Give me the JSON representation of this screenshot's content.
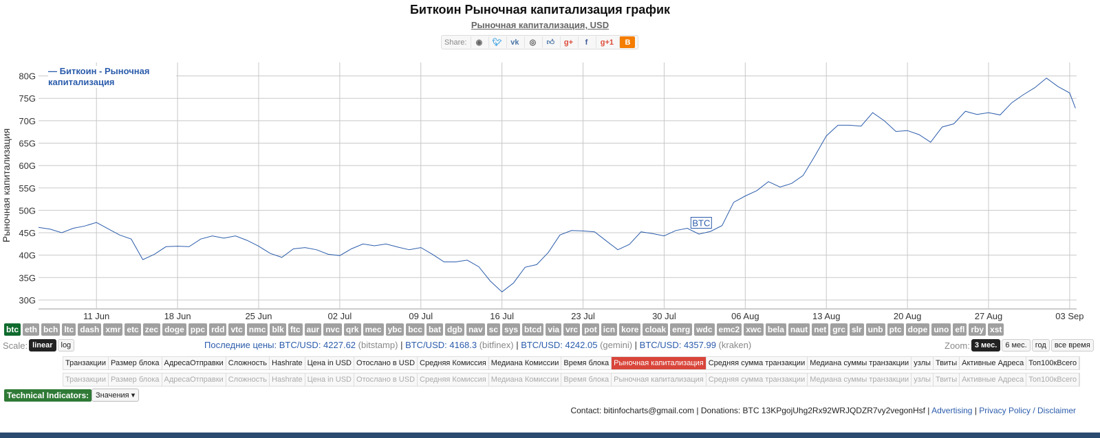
{
  "header": {
    "title": "Биткоин Рыночная капитализация график",
    "subtitle": "Рыночная капитализация, USD",
    "share_label": "Share:",
    "share_buttons": [
      "reddit-icon",
      "twitter-icon",
      "vk-icon",
      "weibo-icon",
      "like-icon",
      "google-icon",
      "facebook-icon",
      "google-plus-one-icon",
      "blogger-icon"
    ]
  },
  "chart_data": {
    "type": "line",
    "ylabel": "Рыночная капитализация",
    "legend": "— Биткоин - Рыночная капитализация",
    "legend_position": "top-left",
    "y_ticks": [
      "30G",
      "35G",
      "40G",
      "45G",
      "50G",
      "55G",
      "60G",
      "65G",
      "70G",
      "75G",
      "80G"
    ],
    "ylim": [
      28,
      83
    ],
    "x_ticks": [
      "11 Jun",
      "18 Jun",
      "25 Jun",
      "02 Jul",
      "09 Jul",
      "16 Jul",
      "23 Jul",
      "30 Jul",
      "06 Aug",
      "13 Aug",
      "20 Aug",
      "27 Aug",
      "03 Sep"
    ],
    "x_start_day": 6,
    "x_end_day": 95,
    "grid": true,
    "annotation": {
      "text": "BTC",
      "x": 63.2,
      "y": 46
    },
    "series": [
      {
        "name": "Биткоин - Рыночная капитализация",
        "color": "#2b5cab",
        "points": [
          [
            6,
            46.2
          ],
          [
            7,
            45.8
          ],
          [
            8,
            45
          ],
          [
            9,
            46
          ],
          [
            10,
            46.5
          ],
          [
            11,
            47.3
          ],
          [
            12,
            45.9
          ],
          [
            13,
            44.5
          ],
          [
            14,
            43.6
          ],
          [
            15,
            39
          ],
          [
            16,
            40.2
          ],
          [
            17,
            41.9
          ],
          [
            18,
            42
          ],
          [
            19,
            41.9
          ],
          [
            20,
            43.6
          ],
          [
            21,
            44.3
          ],
          [
            22,
            43.8
          ],
          [
            23,
            44.3
          ],
          [
            24,
            43.3
          ],
          [
            25,
            42
          ],
          [
            26,
            40.4
          ],
          [
            27,
            39.5
          ],
          [
            28,
            41.4
          ],
          [
            29,
            41.7
          ],
          [
            30,
            41.2
          ],
          [
            31,
            40.2
          ],
          [
            32,
            39.9
          ],
          [
            33,
            41.4
          ],
          [
            34,
            42.5
          ],
          [
            35,
            42.1
          ],
          [
            36,
            42.5
          ],
          [
            37,
            41.8
          ],
          [
            38,
            41.2
          ],
          [
            39,
            41.7
          ],
          [
            40,
            40.2
          ],
          [
            41,
            38.5
          ],
          [
            42,
            38.5
          ],
          [
            43,
            38.9
          ],
          [
            44,
            37.4
          ],
          [
            45,
            34.2
          ],
          [
            46,
            31.8
          ],
          [
            47,
            33.8
          ],
          [
            48,
            37.3
          ],
          [
            49,
            37.9
          ],
          [
            50,
            40.6
          ],
          [
            51,
            44.5
          ],
          [
            52,
            45.5
          ],
          [
            53,
            45.4
          ],
          [
            54,
            45.2
          ],
          [
            55,
            43.2
          ],
          [
            56,
            41.2
          ],
          [
            57,
            42.4
          ],
          [
            58,
            45.2
          ],
          [
            59,
            44.8
          ],
          [
            60,
            44.3
          ],
          [
            61,
            45.5
          ],
          [
            62,
            46
          ],
          [
            63,
            44.7
          ],
          [
            64,
            45.3
          ],
          [
            65,
            46.6
          ],
          [
            66,
            51.8
          ],
          [
            67,
            53.2
          ],
          [
            68,
            54.4
          ],
          [
            69,
            56.4
          ],
          [
            70,
            55.2
          ],
          [
            71,
            56
          ],
          [
            72,
            57.8
          ],
          [
            73,
            62.1
          ],
          [
            74,
            66.6
          ],
          [
            75,
            69
          ],
          [
            76,
            69
          ],
          [
            77,
            68.8
          ],
          [
            78,
            71.8
          ],
          [
            79,
            70
          ],
          [
            80,
            67.6
          ],
          [
            81,
            67.8
          ],
          [
            82,
            66.9
          ],
          [
            83,
            65.2
          ],
          [
            84,
            68.6
          ],
          [
            85,
            69.3
          ],
          [
            86,
            72.1
          ],
          [
            87,
            71.4
          ],
          [
            88,
            71.8
          ],
          [
            89,
            71.3
          ],
          [
            90,
            74
          ],
          [
            91,
            75.8
          ],
          [
            92,
            77.4
          ],
          [
            93,
            79.5
          ],
          [
            94,
            77.6
          ],
          [
            95,
            76.2
          ],
          [
            95.5,
            72.8
          ]
        ]
      }
    ]
  },
  "coins": [
    "btc",
    "eth",
    "bch",
    "ltc",
    "dash",
    "xmr",
    "etc",
    "zec",
    "doge",
    "ppc",
    "rdd",
    "vtc",
    "nmc",
    "blk",
    "ftc",
    "aur",
    "nvc",
    "qrk",
    "mec",
    "ybc",
    "bcc",
    "bat",
    "dgb",
    "nav",
    "sc",
    "sys",
    "btcd",
    "via",
    "vrc",
    "pot",
    "icn",
    "kore",
    "cloak",
    "enrg",
    "wdc",
    "emc2",
    "xwc",
    "bela",
    "naut",
    "net",
    "grc",
    "slr",
    "unb",
    "ptc",
    "dope",
    "uno",
    "efl",
    "rby",
    "xst"
  ],
  "scale": {
    "label": "Scale:",
    "linear": "linear",
    "log": "log"
  },
  "prices": {
    "label": "Последние цены:",
    "items": [
      {
        "pair": "BTC/USD:",
        "value": "4227.62",
        "exchange": "(bitstamp)"
      },
      {
        "pair": "BTC/USD:",
        "value": "4168.3",
        "exchange": "(bitfinex)"
      },
      {
        "pair": "BTC/USD:",
        "value": "4242.05",
        "exchange": "(gemini)"
      },
      {
        "pair": "BTC/USD:",
        "value": "4357.99",
        "exchange": "(kraken)"
      }
    ]
  },
  "zoom": {
    "label": "Zoom:",
    "options": [
      "3 мес.",
      "6 мес.",
      "год",
      "все время"
    ]
  },
  "tabs": [
    "Транзакции",
    "Размер блока",
    "АдресаОтправки",
    "Сложность",
    "Hashrate",
    "Цена in USD",
    "Отослано в USD",
    "Средняя Комиссия",
    "Медиана Комиссии",
    "Время блока",
    "Рыночная капитализация",
    "Средняя сумма транзакции",
    "Медиана суммы транзакции",
    "узлы",
    "Твиты",
    "Активные Адреса",
    "Топ100кВсего"
  ],
  "active_tab": "Рыночная капитализация",
  "technical": {
    "label": "Technical Indicators:",
    "dropdown": "Значения"
  },
  "footer": {
    "contact": "Contact: bitinfocharts@gmail.com | Donations: BTC 13KPgojUhg2Rx92WRJQDZR7vy2vegonHsf |",
    "advertising": "Advertising",
    "divider": "|",
    "privacy": "Privacy Policy / Disclaimer"
  }
}
